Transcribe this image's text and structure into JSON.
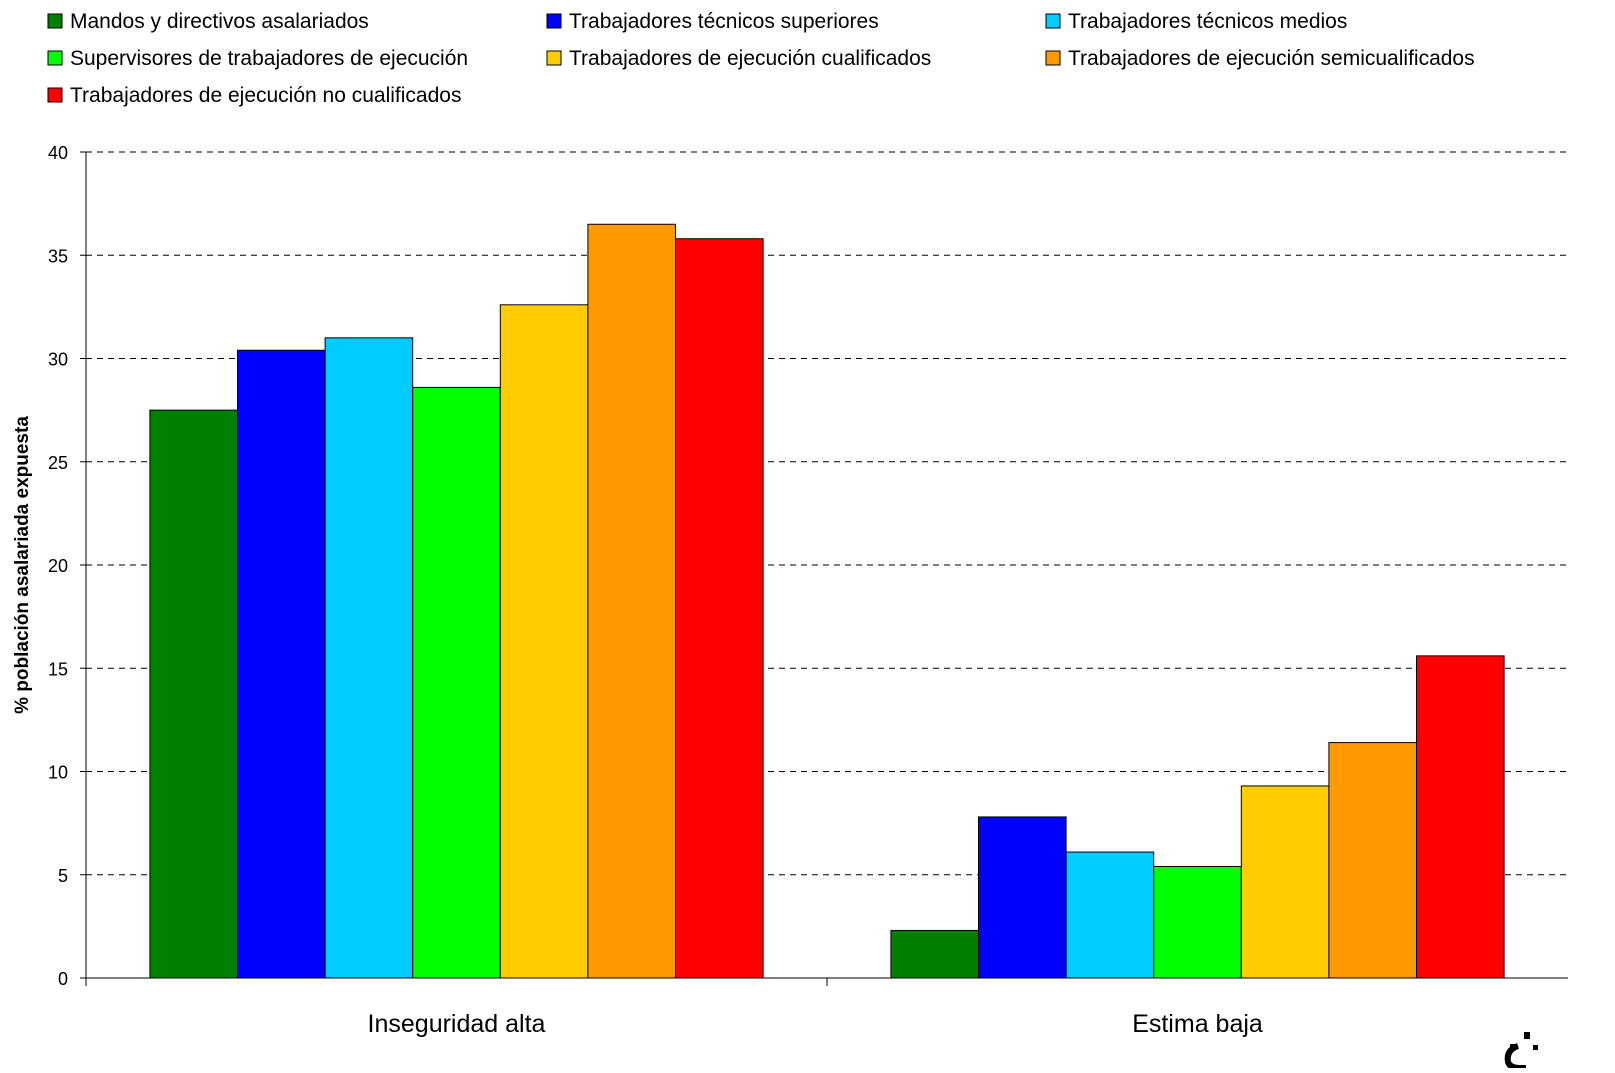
{
  "chart_data": {
    "type": "bar",
    "categories": [
      "Inseguridad alta",
      "Estima baja"
    ],
    "series": [
      {
        "name": "Mandos y directivos asalariados",
        "color": "#008000",
        "values": [
          27.5,
          2.3
        ]
      },
      {
        "name": "Trabajadores técnicos superiores",
        "color": "#0000ff",
        "values": [
          30.4,
          7.8
        ]
      },
      {
        "name": "Trabajadores técnicos medios",
        "color": "#00ccff",
        "values": [
          31.0,
          6.1
        ]
      },
      {
        "name": "Supervisores de trabajadores de ejecución",
        "color": "#00ff00",
        "values": [
          28.6,
          5.4
        ]
      },
      {
        "name": "Trabajadores de ejecución cualificados",
        "color": "#ffcc00",
        "values": [
          32.6,
          9.3
        ]
      },
      {
        "name": "Trabajadores de ejecución semicualificados",
        "color": "#ff9900",
        "values": [
          36.5,
          11.4
        ]
      },
      {
        "name": "Trabajadores de ejecución no cualificados",
        "color": "#ff0000",
        "values": [
          35.8,
          15.6
        ]
      }
    ],
    "title": "",
    "xlabel": "",
    "ylabel": "% población asalariada expuesta",
    "ylim": [
      0,
      40
    ],
    "yticks": [
      0,
      5,
      10,
      15,
      20,
      25,
      30,
      35,
      40
    ],
    "grid": true,
    "legend_position": "top"
  }
}
